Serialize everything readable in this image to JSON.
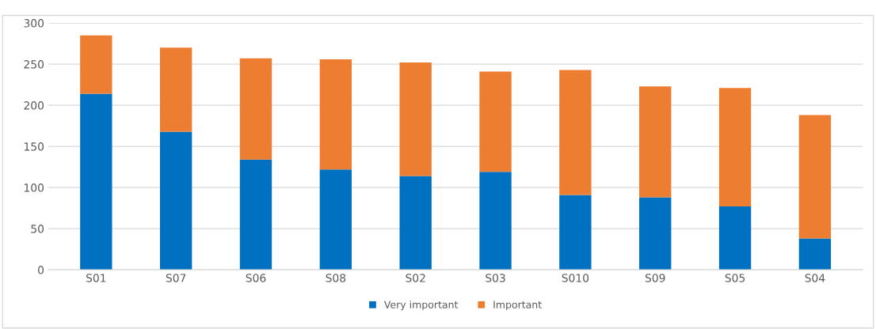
{
  "chart_data": {
    "type": "bar",
    "stacked": true,
    "categories": [
      "S01",
      "S07",
      "S06",
      "S08",
      "S02",
      "S03",
      "S010",
      "S09",
      "S05",
      "S04"
    ],
    "series": [
      {
        "name": "Very important",
        "color": "#0070c0",
        "values": [
          214,
          168,
          134,
          122,
          114,
          119,
          91,
          88,
          77,
          38
        ]
      },
      {
        "name": "Important",
        "color": "#ed7d31",
        "values": [
          71,
          102,
          123,
          134,
          138,
          122,
          152,
          135,
          144,
          150
        ]
      }
    ],
    "ylim": [
      0,
      300
    ],
    "yticks": [
      0,
      50,
      100,
      150,
      200,
      250,
      300
    ],
    "grid": "y",
    "legend": "bottom"
  }
}
